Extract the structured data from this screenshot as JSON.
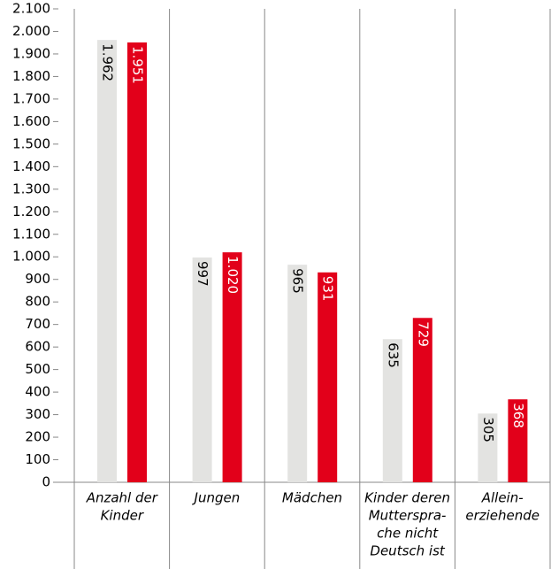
{
  "chart_data": {
    "type": "bar",
    "categories": [
      [
        "Anzahl der",
        "Kinder"
      ],
      [
        "Jungen"
      ],
      [
        "Mädchen"
      ],
      [
        "Kinder deren",
        "Mutterspra-",
        "che nicht",
        "Deutsch ist"
      ],
      [
        "Allein-",
        "erziehende"
      ]
    ],
    "series": [
      {
        "color": "#e3e3e1",
        "label_color": "#000000",
        "values": [
          1962,
          997,
          965,
          635,
          305
        ],
        "value_labels": [
          "1.962",
          "997",
          "965",
          "635",
          "305"
        ]
      },
      {
        "color": "#e2001a",
        "label_color": "#ffffff",
        "values": [
          1951,
          1020,
          931,
          729,
          368
        ],
        "value_labels": [
          "1.951",
          "1.020",
          "931",
          "729",
          "368"
        ]
      }
    ],
    "ylim": [
      0,
      2100
    ],
    "yticks": [
      0,
      100,
      200,
      300,
      400,
      500,
      600,
      700,
      800,
      900,
      {
        "value": 1000,
        "label": "1.000"
      },
      {
        "value": 1100,
        "label": "1.100"
      },
      {
        "value": 1200,
        "label": "1.200"
      },
      {
        "value": 1300,
        "label": "1.300"
      },
      {
        "value": 1400,
        "label": "1.400"
      },
      {
        "value": 1500,
        "label": "1.500"
      },
      {
        "value": 1600,
        "label": "1.600"
      },
      {
        "value": 1700,
        "label": "1.700"
      },
      {
        "value": 1800,
        "label": "1.800"
      },
      {
        "value": 1900,
        "label": "1.900"
      },
      {
        "value": 2000,
        "label": "2.000"
      },
      {
        "value": 2100,
        "label": "2.100"
      }
    ],
    "grid": false
  }
}
